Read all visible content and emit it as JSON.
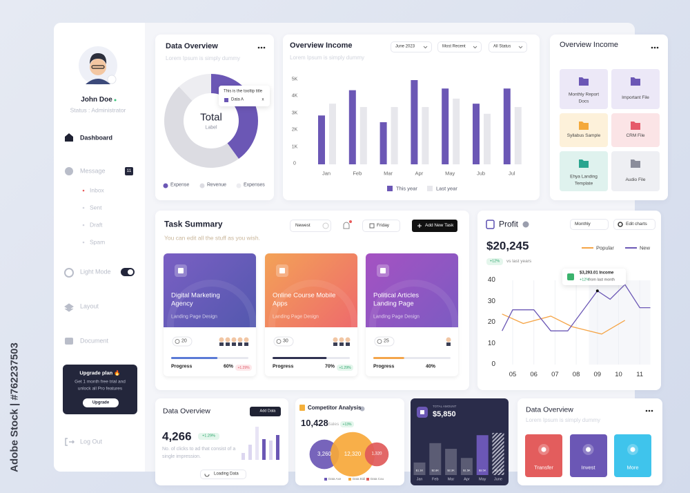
{
  "watermark": "Adobe Stock | #762237503",
  "sidebar": {
    "name": "John Doe",
    "status": "Status : Administrator",
    "dashboard": "Dashboard",
    "message": "Message",
    "message_count": 11,
    "submenu": [
      "Inbox",
      "Sent",
      "Draft",
      "Spam"
    ],
    "light_mode": "Light Mode",
    "layout": "Layout",
    "document": "Document",
    "upgrade": {
      "title": "Upgrade plan 🔥",
      "text": "Get 1 month free trial and unlock all Pro features",
      "button": "Upgrade"
    },
    "logout": "Log Out"
  },
  "data_overview": {
    "title": "Data Overview",
    "subtitle": "Lorem Ipsum is simply dummy",
    "center_title": "Total",
    "center_label": "Label",
    "tooltip": {
      "title": "This is the tooltip title",
      "item": "Data A",
      "close": "x"
    },
    "chart": {
      "type": "pie",
      "categories": [
        "Expense",
        "Revenue",
        "Expenses"
      ],
      "values": [
        40,
        48,
        12
      ],
      "colors": [
        "#6b57b5",
        "#dcdce2",
        "#ededf1"
      ]
    }
  },
  "income": {
    "title": "Overview Income",
    "subtitle": "Lorem Ipsum is simply dummy",
    "filters": [
      "June 2023",
      "Most Recent",
      "All Status"
    ],
    "chart": {
      "type": "bar",
      "categories": [
        "Jan",
        "Feb",
        "Mar",
        "Apr",
        "May",
        "Jub",
        "Jul"
      ],
      "series": [
        {
          "name": "This year",
          "color": "#6b57b5",
          "values": [
            2900,
            4400,
            2500,
            5000,
            4500,
            3600,
            4500
          ]
        },
        {
          "name": "Last year",
          "color": "#e7e7ec",
          "values": [
            3600,
            3400,
            3400,
            3400,
            3900,
            3000,
            3400
          ]
        }
      ],
      "ylim": [
        0,
        5000
      ],
      "yticks": [
        0,
        {
          "value": 1000,
          "label": "1K"
        },
        {
          "value": 2000,
          "label": "2K"
        },
        {
          "value": 3000,
          "label": "3K"
        },
        {
          "value": 4000,
          "label": "4K"
        },
        {
          "value": 5000,
          "label": "5K"
        }
      ]
    }
  },
  "files": {
    "title": "Overview Income",
    "items": [
      {
        "label": "Monthly Report Docs",
        "color": "#6b57b5",
        "background": "#ece8f7"
      },
      {
        "label": "Important File",
        "color": "#6b57b5",
        "background": "#ece8f7"
      },
      {
        "label": "Syllabus Sample",
        "color": "#f4a93b",
        "background": "#fdf1da"
      },
      {
        "label": "CRM File",
        "color": "#e65a6a",
        "background": "#fbe4e6"
      },
      {
        "label": "Ehya Landing Template",
        "color": "#2aa58f",
        "background": "#dff2ee"
      },
      {
        "label": "Audio File",
        "color": "#8a8d9b",
        "background": "#eeeff3"
      }
    ]
  },
  "tasks": {
    "title": "Task Summary",
    "subtitle": "You can edit all the stuff as you wish.",
    "sort": "Newest",
    "day": "Friday",
    "button": "Add New Task",
    "cards": [
      {
        "title": "Digital Marketing Agency",
        "subtitle": "Landing Page Design",
        "count": 20,
        "progress_label": "Progress",
        "progress": {
          "value": 60,
          "label": "60%"
        },
        "change": "+1.29%",
        "colors": [
          "#7a5fc3",
          "#5358ae"
        ],
        "bar_color": "#5a7ad6"
      },
      {
        "title": "Online Course Mobile Apps",
        "subtitle": "Landing Page Design",
        "count": 30,
        "progress_label": "Progress",
        "progress": {
          "value": 70,
          "label": "70%"
        },
        "change": "+1.29%",
        "colors": [
          "#f3a257",
          "#ee6a6c"
        ],
        "bar_color": "#2f3150"
      },
      {
        "title": "Political Articles Landing Page",
        "subtitle": "Landing Page Design",
        "count": 25,
        "progress_label": "Progress",
        "progress": {
          "value": 40,
          "label": "40%"
        },
        "colors": [
          "#a552c2",
          "#7c5bc2"
        ],
        "bar_color": "#f4a54a"
      }
    ]
  },
  "profit": {
    "title": "Profit",
    "period": "Monthly",
    "edit": "Edit charts",
    "value": "$20,245",
    "change": "+12%",
    "change_note": "vs last years",
    "tooltip": {
      "value": "$3,293.01 Income",
      "change": "+12%",
      "note": "from last month"
    },
    "chart": {
      "type": "line",
      "xlim": [
        4.5,
        11.5
      ],
      "ylim": [
        0,
        40
      ],
      "yticks": [
        0,
        10,
        20,
        30,
        40
      ],
      "xticks": [
        {
          "value": 5,
          "label": "05"
        },
        {
          "value": 6,
          "label": "06"
        },
        {
          "value": 7,
          "label": "07"
        },
        {
          "value": 8,
          "label": "08"
        },
        {
          "value": 9,
          "label": "09"
        },
        10,
        11
      ],
      "series": [
        {
          "name": "Popular",
          "color": "#f5a445",
          "x": [
            4.5,
            5.5,
            6.8,
            7.8,
            9.2,
            10.3
          ],
          "values": [
            24,
            19.5,
            23,
            18,
            14.5,
            21
          ]
        },
        {
          "name": "New",
          "color": "#6b57b5",
          "x": [
            4.5,
            5,
            6,
            6.8,
            7.6,
            9,
            9.6,
            10.3,
            11,
            11.5
          ],
          "values": [
            16,
            26,
            26,
            16,
            16,
            35,
            31,
            38,
            27,
            27
          ]
        }
      ]
    }
  },
  "clicks": {
    "title": "Data Overview",
    "button": "Add Data",
    "value": "4,266",
    "change": "+1.29%",
    "note": "No. of clicks to ad that consist of a single impression.",
    "loading": "Loading Data",
    "bars": [
      10,
      22,
      48,
      30,
      28,
      36
    ],
    "colors": [
      "#dcd6f0",
      "#dcd6f0",
      "#e8e4f5",
      "#6b57b5",
      "#dcd6f0",
      "#6b57b5"
    ]
  },
  "competitor": {
    "title": "Competitor Analysis",
    "value": "10,428",
    "unit": "Sales",
    "change": "+13%",
    "bubbles": [
      {
        "name": "Data Axe",
        "value": 3260,
        "label": "3,260",
        "color": "#6b57b5"
      },
      {
        "name": "Data Bidi",
        "value": 12320,
        "label": "12,320",
        "color": "#f7a83a"
      },
      {
        "name": "Data Cou",
        "value": 1320,
        "label": "1,320",
        "color": "#e05a5a"
      }
    ]
  },
  "amount": {
    "label": "TOTAL AMOUNT",
    "value": "$5,850",
    "chart": {
      "type": "bar",
      "categories": [
        "Jan",
        "Feb",
        "Mar",
        "Apr",
        "May",
        "June"
      ],
      "values": [
        1100,
        2800,
        2300,
        1500,
        3500,
        3700
      ],
      "value_labels": [
        "$1.1K",
        "$2.8K",
        "$2.3K",
        "$1.5K",
        "$3.5K",
        "$3.7K"
      ],
      "colors": [
        "#5b5c74",
        "#5b5c74",
        "#5b5c74",
        "#5b5c74",
        "#6b57b5",
        "#8a8b9e"
      ]
    }
  },
  "actions": {
    "title": "Data Overview",
    "subtitle": "Lorem Ipsum is simply dummy",
    "items": [
      {
        "label": "Transfer",
        "color": "#e35d5d"
      },
      {
        "label": "Invest",
        "color": "#6b57b5"
      },
      {
        "label": "More",
        "color": "#3fc4ec"
      }
    ]
  }
}
